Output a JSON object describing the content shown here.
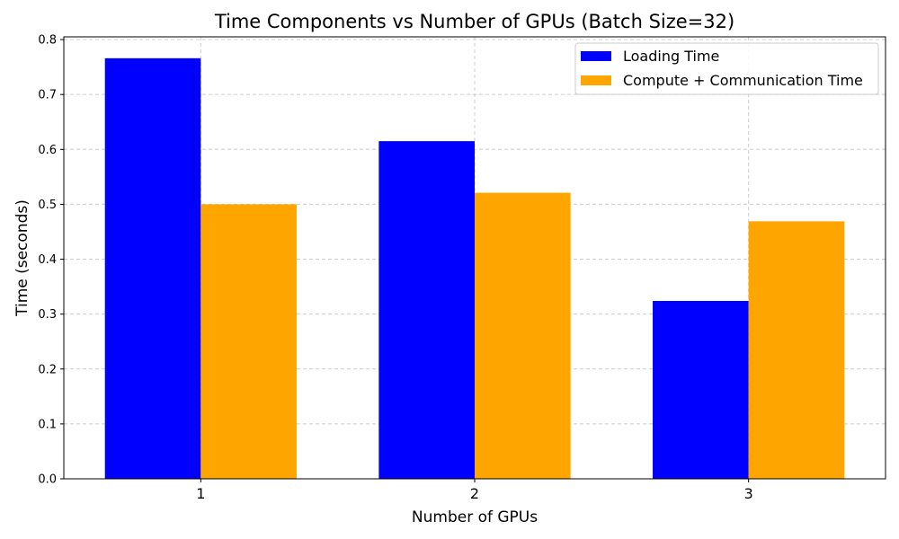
{
  "chart_data": {
    "type": "bar",
    "title": "Time Components vs Number of GPUs (Batch Size=32)",
    "xlabel": "Number of GPUs",
    "ylabel": "Time (seconds)",
    "categories": [
      "1",
      "2",
      "3"
    ],
    "series": [
      {
        "name": "Loading Time",
        "color": "#0000ff",
        "values": [
          0.766,
          0.615,
          0.324
        ]
      },
      {
        "name": "Compute + Communication Time",
        "color": "#ffa500",
        "values": [
          0.5,
          0.521,
          0.469
        ]
      }
    ],
    "ylim": [
      0,
      0.805
    ],
    "yticks": [
      0.0,
      0.1,
      0.2,
      0.3,
      0.4,
      0.5,
      0.6,
      0.7,
      0.8
    ],
    "ytick_labels": [
      "0.0",
      "0.1",
      "0.2",
      "0.3",
      "0.4",
      "0.5",
      "0.6",
      "0.7",
      "0.8"
    ],
    "grid": true,
    "legend_position": "top-right"
  }
}
